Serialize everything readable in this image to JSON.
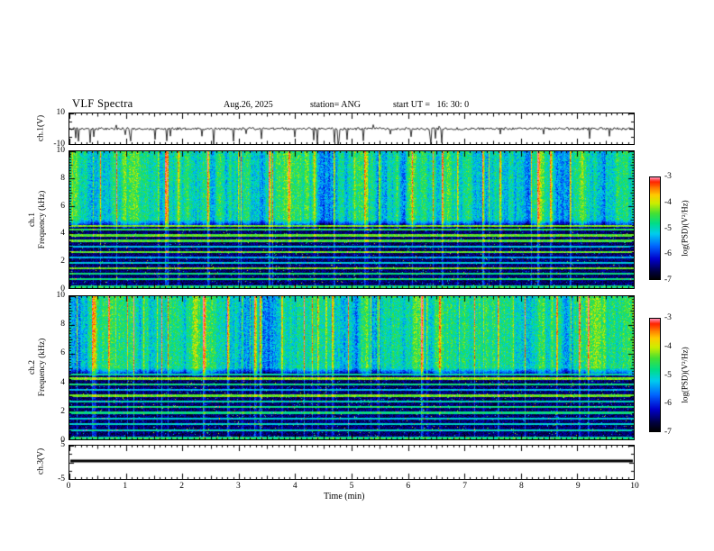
{
  "header": {
    "title": "VLF Spectra",
    "date": "Aug.26, 2025",
    "station": "station= ANG",
    "start_ut": "start UT =   16: 30: 0"
  },
  "xaxis": {
    "label": "Time (min)",
    "range": [
      0,
      10
    ],
    "tick_labels": [
      "0",
      "1",
      "2",
      "3",
      "4",
      "5",
      "6",
      "7",
      "8",
      "9",
      "10"
    ]
  },
  "colorbar": {
    "label": "log(PSD)(V²/Hz)",
    "range": [
      -7,
      -3
    ],
    "tick_labels": [
      "-3",
      "-4",
      "-5",
      "-6",
      "-7"
    ],
    "stops": [
      [
        0.0,
        "#000000"
      ],
      [
        0.08,
        "#000040"
      ],
      [
        0.2,
        "#0000cc"
      ],
      [
        0.33,
        "#0066ff"
      ],
      [
        0.45,
        "#00ccee"
      ],
      [
        0.55,
        "#00dd88"
      ],
      [
        0.65,
        "#44e033"
      ],
      [
        0.75,
        "#ccee00"
      ],
      [
        0.83,
        "#ffcc00"
      ],
      [
        0.9,
        "#ff7700"
      ],
      [
        0.96,
        "#ff2200"
      ],
      [
        1.0,
        "#ff88aa"
      ]
    ]
  },
  "chart_data": [
    {
      "type": "line",
      "panel": "ch1-waveform",
      "ylabel": "ch.1(V)",
      "ylim": [
        -10,
        10
      ],
      "ytick_labels": [
        "10",
        "-10"
      ],
      "noise_amplitude": 0.8,
      "spike_count": 30,
      "description": "broadband noise near 0 V with intermittent negative spikes reaching about -10 V",
      "seed": 5
    },
    {
      "type": "heatmap",
      "panel": "ch1-spectrogram",
      "ylabel": "ch.1 Frequency (kHz)",
      "ylabel_line1": "ch.1",
      "ylabel_line2": "Frequency (kHz)",
      "ylim": [
        0,
        10
      ],
      "yticks": [
        0,
        2,
        4,
        6,
        8,
        10
      ],
      "zlabel": "log(PSD)(V²/Hz)",
      "zlim": [
        -7,
        -3
      ],
      "bands": {
        "upper_base": -4.9,
        "transition": [
          4.4,
          5.0
        ],
        "lower_base": -6.55
      },
      "harmonic_lines_khz": [
        0.15,
        0.65,
        1.05,
        1.45,
        1.85,
        2.25,
        2.65,
        3.05,
        3.45,
        3.85,
        4.25,
        4.55
      ],
      "streak_density": 0.06,
      "description": "green/yellow VLF hiss above ~5 kHz with frequent vertical red sferic streaks; dark blue band below ~4.4 kHz crossed by thin horizontal harmonic lines and vertical streaks",
      "seed": 13
    },
    {
      "type": "heatmap",
      "panel": "ch2-spectrogram",
      "ylabel": "ch.2 Frequency (kHz)",
      "ylabel_line1": "ch.2",
      "ylabel_line2": "Frequency (kHz)",
      "ylim": [
        0,
        10
      ],
      "yticks": [
        0,
        2,
        4,
        6,
        8,
        10
      ],
      "zlabel": "log(PSD)(V²/Hz)",
      "zlim": [
        -7,
        -3
      ],
      "bands": {
        "upper_base": -4.9,
        "transition": [
          4.4,
          5.0
        ],
        "lower_base": -6.55
      },
      "harmonic_lines_khz": [
        0.15,
        0.65,
        1.05,
        1.45,
        1.85,
        2.25,
        2.65,
        3.05,
        3.45,
        3.85,
        4.25,
        4.55
      ],
      "streak_density": 0.06,
      "description": "same structure as ch.1 spectrogram",
      "seed": 47
    },
    {
      "type": "line",
      "panel": "ch3-waveform",
      "ylabel": "ch.3(V)",
      "ylim": [
        -5,
        5
      ],
      "ytick_labels": [
        "5",
        "-5"
      ],
      "value": 0.4,
      "description": "constant flat thick line slightly above 0 V",
      "seed": 9
    }
  ]
}
